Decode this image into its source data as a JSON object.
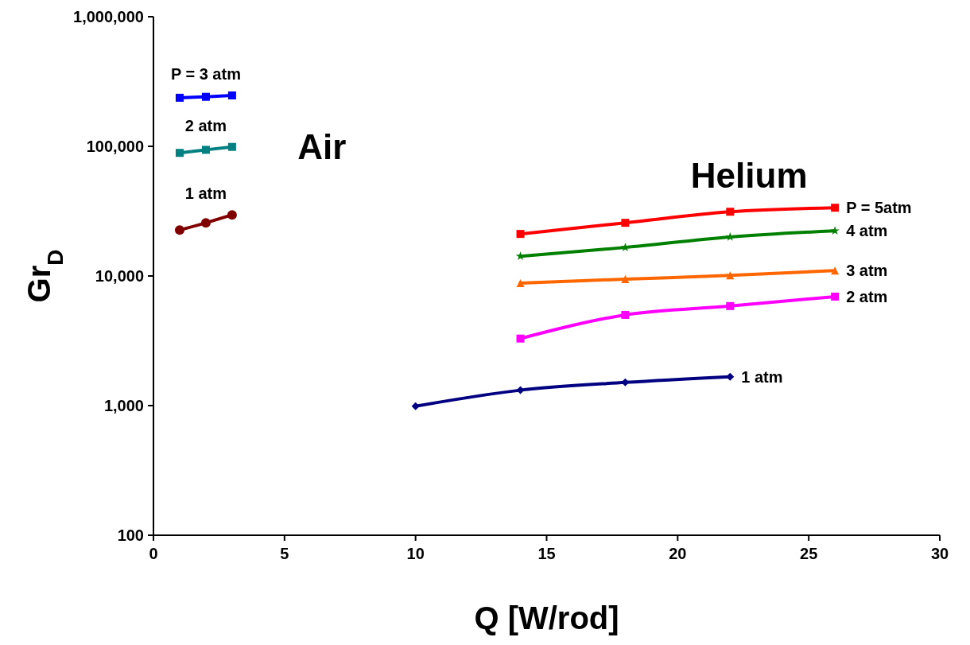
{
  "chart_data": {
    "type": "line",
    "xlabel": "Q [W/rod]",
    "ylabel": "Gr$_{D}$",
    "log": "y",
    "xlim": [
      0,
      30
    ],
    "xticks": [
      0,
      5,
      10,
      15,
      20,
      25,
      30
    ],
    "ylim": [
      100,
      1000000
    ],
    "yticks": [
      100,
      {
        "value": 1000,
        "label": "1,000"
      },
      {
        "value": 10000,
        "label": "10,000"
      },
      {
        "value": 100000,
        "label": "100,000"
      },
      {
        "value": 1000000,
        "label": "1,000,000"
      }
    ],
    "grid": false,
    "annotations": [
      "Air",
      "Helium"
    ],
    "series": [
      {
        "name": "P = 3 atm",
        "color": "#0000ff",
        "marker": "square",
        "x": [
          1,
          2,
          3
        ],
        "values": [
          237000,
          241000,
          247000
        ]
      },
      {
        "name": "2 atm",
        "color": "#008080",
        "marker": "square",
        "x": [
          1,
          2,
          3
        ],
        "values": [
          89000,
          94000,
          99000
        ]
      },
      {
        "name": "1 atm",
        "color": "#800000",
        "marker": "circle",
        "x": [
          1,
          2,
          3
        ],
        "values": [
          22600,
          25700,
          29600
        ]
      },
      {
        "name": "P = 5atm",
        "color": "#ff0000",
        "marker": "square",
        "x": [
          14,
          18,
          22,
          26
        ],
        "values": [
          21100,
          25700,
          31300,
          33600
        ]
      },
      {
        "name": "4 atm",
        "color": "#008000",
        "marker": "star",
        "x": [
          14,
          18,
          22,
          26
        ],
        "values": [
          14200,
          16600,
          20000,
          22300
        ]
      },
      {
        "name": "3 atm",
        "color": "#ff6600",
        "marker": "triangle",
        "x": [
          14,
          18,
          22,
          26
        ],
        "values": [
          8800,
          9450,
          10100,
          11000
        ]
      },
      {
        "name": "2 atm",
        "color": "#ff00ff",
        "marker": "square",
        "x": [
          14,
          18,
          22,
          26
        ],
        "values": [
          3290,
          5010,
          5860,
          6930
        ]
      },
      {
        "name": "1 atm",
        "color": "#000080",
        "marker": "diamond",
        "x": [
          10,
          14,
          18,
          22
        ],
        "values": [
          990,
          1315,
          1510,
          1670
        ]
      }
    ]
  }
}
